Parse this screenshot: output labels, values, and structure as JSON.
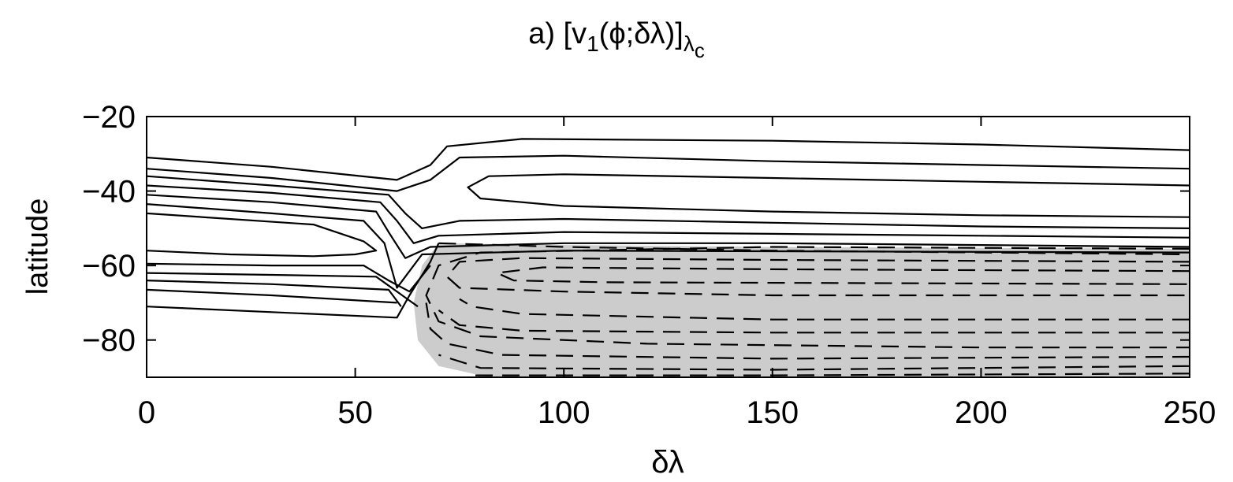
{
  "chart_data": {
    "type": "contour",
    "title": {
      "prefix": "a) [v",
      "sub1": "1",
      "mid": "(ϕ;δλ)]",
      "sub2": "λ",
      "sub3": "c"
    },
    "xlabel": "δλ",
    "ylabel": "latitude",
    "xlim": [
      0,
      250
    ],
    "ylim": [
      -90,
      -20
    ],
    "xticks": [
      0,
      50,
      100,
      150,
      200,
      250
    ],
    "yticks": [
      -20,
      -40,
      -60,
      -80
    ],
    "grid": false,
    "legend": "none",
    "negative_region_fill": "#cccccc",
    "positive_contours": [
      {
        "level": 1,
        "points": [
          [
            0,
            -31
          ],
          [
            30,
            -33.5
          ],
          [
            60,
            -37
          ],
          [
            68,
            -33
          ],
          [
            72,
            -28
          ],
          [
            90,
            -26
          ],
          [
            150,
            -26.5
          ],
          [
            200,
            -27.5
          ],
          [
            250,
            -29
          ]
        ]
      },
      {
        "level": 2,
        "points": [
          [
            0,
            -34
          ],
          [
            30,
            -36.5
          ],
          [
            60,
            -40
          ],
          [
            68,
            -37
          ],
          [
            75,
            -31
          ],
          [
            100,
            -30.5
          ],
          [
            150,
            -32
          ],
          [
            200,
            -33
          ],
          [
            250,
            -34
          ]
        ]
      },
      {
        "level": 3,
        "points": [
          [
            250,
            -38.5
          ],
          [
            200,
            -37.5
          ],
          [
            150,
            -36.5
          ],
          [
            100,
            -35.5
          ],
          [
            82,
            -36
          ],
          [
            77,
            -39
          ],
          [
            80,
            -42
          ],
          [
            100,
            -44
          ],
          [
            150,
            -45.5
          ],
          [
            200,
            -46.5
          ],
          [
            250,
            -47
          ]
        ]
      },
      {
        "level": 4,
        "points": [
          [
            0,
            -36
          ],
          [
            30,
            -38.5
          ],
          [
            58,
            -41
          ],
          [
            62,
            -46
          ],
          [
            66,
            -50
          ],
          [
            75,
            -48
          ],
          [
            100,
            -47.5
          ],
          [
            150,
            -48.5
          ],
          [
            200,
            -49.5
          ],
          [
            250,
            -50
          ]
        ]
      },
      {
        "level": 5,
        "points": [
          [
            0,
            -38.5
          ],
          [
            30,
            -40.5
          ],
          [
            56,
            -43
          ],
          [
            60,
            -48
          ],
          [
            64,
            -54
          ],
          [
            70,
            -52
          ],
          [
            100,
            -51
          ],
          [
            150,
            -51.5
          ],
          [
            200,
            -52
          ],
          [
            250,
            -52.5
          ]
        ]
      },
      {
        "level": 6,
        "points": [
          [
            0,
            -41
          ],
          [
            30,
            -43
          ],
          [
            55,
            -45.5
          ],
          [
            58,
            -51
          ],
          [
            62,
            -58
          ],
          [
            68,
            -55
          ],
          [
            100,
            -54
          ],
          [
            150,
            -54
          ],
          [
            200,
            -54.5
          ],
          [
            250,
            -55
          ]
        ]
      },
      {
        "level": 7,
        "points": [
          [
            0,
            -43.5
          ],
          [
            30,
            -46
          ],
          [
            52,
            -48
          ],
          [
            57,
            -54
          ],
          [
            60,
            -66
          ],
          [
            66,
            -57
          ],
          [
            100,
            -56
          ],
          [
            250,
            -56.5
          ]
        ]
      },
      {
        "level": 8,
        "points": [
          [
            0,
            -46
          ],
          [
            40,
            -49
          ],
          [
            52,
            -53.5
          ],
          [
            55,
            -56
          ],
          [
            50,
            -57
          ],
          [
            40,
            -57.5
          ],
          [
            20,
            -57
          ],
          [
            0,
            -56
          ]
        ]
      },
      {
        "level": 9,
        "points": [
          [
            0,
            -59.5
          ],
          [
            30,
            -60
          ],
          [
            52,
            -60
          ],
          [
            58,
            -64
          ],
          [
            63,
            -67
          ],
          [
            68,
            -60
          ]
        ]
      },
      {
        "level": 10,
        "points": [
          [
            0,
            -62
          ],
          [
            30,
            -62.5
          ],
          [
            55,
            -63
          ],
          [
            60,
            -67
          ],
          [
            65,
            -71
          ]
        ]
      },
      {
        "level": 11,
        "points": [
          [
            0,
            -64
          ],
          [
            30,
            -65
          ],
          [
            58,
            -66.5
          ],
          [
            61,
            -71
          ]
        ]
      },
      {
        "level": 12,
        "points": [
          [
            0,
            -66.5
          ],
          [
            30,
            -68
          ],
          [
            60,
            -70
          ]
        ]
      },
      {
        "level": 13,
        "points": [
          [
            0,
            -71
          ],
          [
            30,
            -72.5
          ],
          [
            60,
            -74
          ],
          [
            63,
            -68
          ],
          [
            68,
            -59
          ],
          [
            70,
            -54
          ]
        ]
      }
    ],
    "negative_contours": [
      {
        "level": -1,
        "points": [
          [
            70,
            -54
          ],
          [
            100,
            -55
          ],
          [
            150,
            -56
          ],
          [
            200,
            -56.5
          ],
          [
            250,
            -57
          ]
        ]
      },
      {
        "level": -2,
        "points": [
          [
            250,
            -59
          ],
          [
            150,
            -58.5
          ],
          [
            90,
            -58
          ],
          [
            75,
            -59
          ],
          [
            72,
            -63
          ],
          [
            75,
            -66
          ],
          [
            100,
            -67
          ],
          [
            150,
            -68
          ],
          [
            250,
            -68
          ]
        ]
      },
      {
        "level": -3,
        "points": [
          [
            250,
            -61.5
          ],
          [
            150,
            -61
          ],
          [
            95,
            -60.5
          ],
          [
            84,
            -62
          ],
          [
            88,
            -64
          ],
          [
            110,
            -64.5
          ],
          [
            250,
            -65
          ]
        ]
      },
      {
        "level": -4,
        "points": [
          [
            250,
            -55.5
          ],
          [
            150,
            -55
          ],
          [
            80,
            -56.5
          ],
          [
            70,
            -60
          ],
          [
            67,
            -68
          ],
          [
            70,
            -75
          ],
          [
            80,
            -79
          ],
          [
            120,
            -81
          ],
          [
            200,
            -82
          ],
          [
            250,
            -82
          ]
        ]
      },
      {
        "level": -5,
        "points": [
          [
            250,
            -74.5
          ],
          [
            150,
            -74.5
          ],
          [
            90,
            -73
          ],
          [
            78,
            -71
          ],
          [
            75,
            -69
          ]
        ]
      },
      {
        "level": -6,
        "points": [
          [
            250,
            -78
          ],
          [
            150,
            -78
          ],
          [
            90,
            -77.5
          ],
          [
            75,
            -76
          ],
          [
            70,
            -72
          ]
        ]
      },
      {
        "level": -7,
        "points": [
          [
            250,
            -84.5
          ],
          [
            150,
            -85
          ],
          [
            85,
            -84
          ],
          [
            72,
            -81
          ],
          [
            68,
            -77
          ],
          [
            67,
            -70
          ]
        ]
      },
      {
        "level": -8,
        "points": [
          [
            250,
            -87
          ],
          [
            150,
            -88
          ],
          [
            80,
            -87.5
          ],
          [
            70,
            -84
          ]
        ]
      },
      {
        "level": -9,
        "points": [
          [
            250,
            -89
          ],
          [
            150,
            -89.5
          ],
          [
            78,
            -89.5
          ]
        ]
      }
    ]
  }
}
